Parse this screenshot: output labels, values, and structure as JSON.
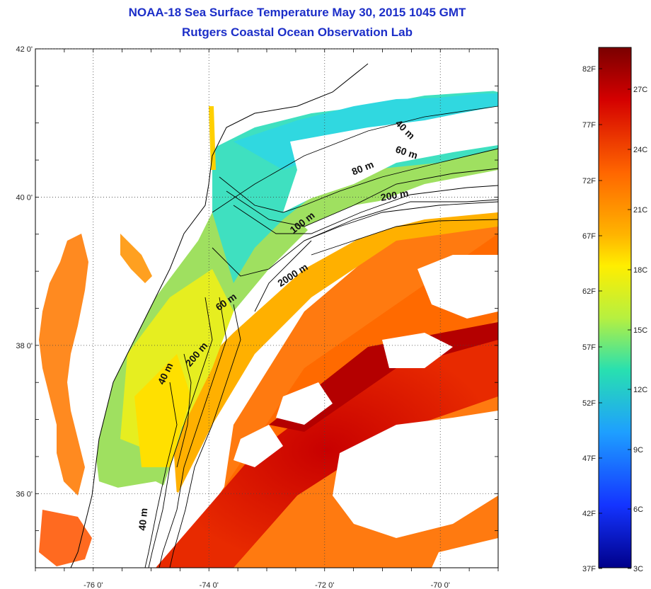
{
  "title": {
    "line1": "NOAA-18 Sea Surface Temperature May 30, 2015 1045 GMT",
    "line2": "Rutgers Coastal Ocean Observation Lab"
  },
  "map": {
    "lat_ticks": [
      {
        "value": 42,
        "label": "42 0'"
      },
      {
        "value": 40,
        "label": "40 0'"
      },
      {
        "value": 38,
        "label": "38 0'"
      },
      {
        "value": 36,
        "label": "36 0'"
      }
    ],
    "lon_ticks": [
      {
        "value": -76,
        "label": "-76 0'"
      },
      {
        "value": -74,
        "label": "-74 0'"
      },
      {
        "value": -72,
        "label": "-72 0'"
      },
      {
        "value": -70,
        "label": "-70 0'"
      }
    ],
    "contour_labels": [
      {
        "text": "40 m",
        "lon": -70.65,
        "lat": 40.88,
        "rotate": 45
      },
      {
        "text": "60 m",
        "lon": -70.6,
        "lat": 40.56,
        "rotate": 18
      },
      {
        "text": "80 m",
        "lon": -71.32,
        "lat": 40.35,
        "rotate": -22
      },
      {
        "text": "200 m",
        "lon": -70.78,
        "lat": 39.98,
        "rotate": -10
      },
      {
        "text": "100 m",
        "lon": -72.35,
        "lat": 39.62,
        "rotate": -38
      },
      {
        "text": "2000 m",
        "lon": -72.52,
        "lat": 38.91,
        "rotate": -33
      },
      {
        "text": "60 m",
        "lon": -73.67,
        "lat": 38.55,
        "rotate": -35
      },
      {
        "text": "200 m",
        "lon": -74.17,
        "lat": 37.85,
        "rotate": -50
      },
      {
        "text": "40 m",
        "lon": -74.7,
        "lat": 37.6,
        "rotate": -65
      },
      {
        "text": "40 m",
        "lon": -75.08,
        "lat": 35.65,
        "rotate": -85
      }
    ]
  },
  "colorbar": {
    "f_labels": [
      "82F",
      "77F",
      "72F",
      "67F",
      "62F",
      "57F",
      "52F",
      "47F",
      "42F",
      "37F"
    ],
    "c_labels": [
      "27C",
      "24C",
      "21C",
      "18C",
      "15C",
      "12C",
      "9C",
      "6C",
      "3C"
    ],
    "colors": [
      "#7a0000",
      "#d40000",
      "#ff6600",
      "#ffb400",
      "#ffee00",
      "#b6f040",
      "#28e0b0",
      "#1e9fff",
      "#1434ff",
      "#00008a"
    ]
  }
}
